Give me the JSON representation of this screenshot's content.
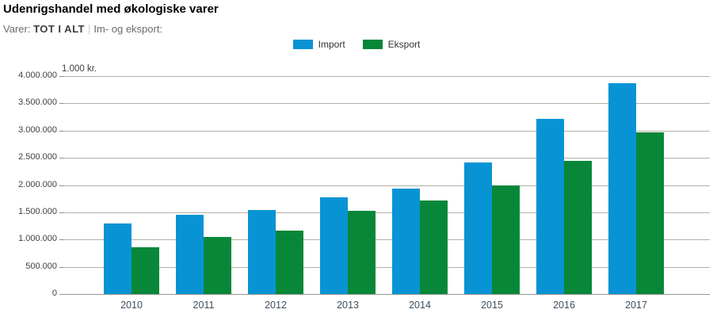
{
  "header": {
    "title": "Udenrigshandel med økologiske varer",
    "varer_label": "Varer:",
    "varer_value": "TOT I ALT",
    "separator": "|",
    "subtitle_rest": "Im- og eksport:"
  },
  "chart_data": {
    "type": "bar",
    "title": "Udenrigshandel med økologiske varer",
    "subtitle": "Varer: TOT I ALT | Im- og eksport:",
    "unit_label": "1.000 kr.",
    "xlabel": "",
    "ylabel": "1.000 kr.",
    "categories": [
      "2010",
      "2011",
      "2012",
      "2013",
      "2014",
      "2015",
      "2016",
      "2017"
    ],
    "series": [
      {
        "name": "Import",
        "color": "#0894d4",
        "values": [
          1290000,
          1460000,
          1540000,
          1780000,
          1940000,
          2410000,
          3220000,
          3870000
        ]
      },
      {
        "name": "Eksport",
        "color": "#088739",
        "values": [
          860000,
          1040000,
          1170000,
          1530000,
          1720000,
          1990000,
          2450000,
          2960000
        ]
      }
    ],
    "ylim": [
      0,
      4000000
    ],
    "ytick_step": 500000,
    "grid": "horizontal",
    "legend_position": "top-center"
  }
}
